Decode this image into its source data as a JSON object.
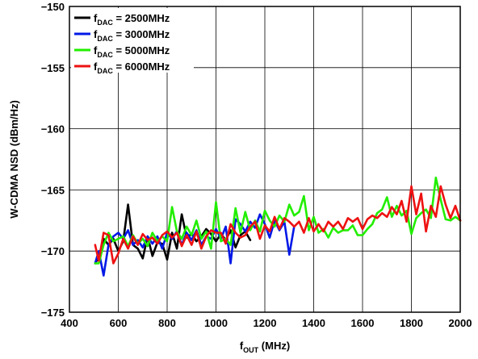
{
  "chart_data": {
    "type": "line",
    "xlabel": {
      "main": "f",
      "sub": "OUT",
      "rest": " (MHz)"
    },
    "ylabel": "W-CDMA NSD (dBm/Hz)",
    "xlim": [
      400,
      2000
    ],
    "ylim": [
      -175,
      -150
    ],
    "x_ticks": [
      400,
      600,
      800,
      1000,
      1200,
      1400,
      1600,
      1800,
      2000
    ],
    "y_ticks": [
      -175,
      -170,
      -165,
      -160,
      -155,
      -150
    ],
    "x_tick_labels": [
      "400",
      "600",
      "800",
      "1000",
      "1200",
      "1400",
      "1600",
      "1800",
      "2000"
    ],
    "y_tick_labels": [
      "−175",
      "−170",
      "−165",
      "−160",
      "−155",
      "−150"
    ],
    "grid": true,
    "legend_position": "top-left",
    "series": [
      {
        "name": {
          "main": "f",
          "sub": "DAC",
          "rest": " = 2500MHz"
        },
        "color": "#000000",
        "x": [
          505,
          520,
          540,
          560,
          580,
          600,
          620,
          640,
          660,
          680,
          700,
          720,
          740,
          760,
          780,
          800,
          820,
          840,
          860,
          880,
          900,
          920,
          940,
          960,
          980,
          1000,
          1020,
          1040,
          1060,
          1080,
          1100,
          1120,
          1140
        ],
        "y": [
          -171,
          -170.5,
          -169,
          -169.5,
          -169,
          -170,
          -169.2,
          -166.2,
          -169.5,
          -169.8,
          -170.6,
          -168.8,
          -170.4,
          -169.3,
          -169.4,
          -170.7,
          -168.5,
          -169.8,
          -167,
          -168.9,
          -168.6,
          -169.2,
          -168.8,
          -168.2,
          -168.6,
          -169.2,
          -168.6,
          -169.1,
          -168.3,
          -169.7,
          -168.7,
          -168.4,
          -169.1
        ]
      },
      {
        "name": {
          "main": "f",
          "sub": "DAC",
          "rest": " = 3000MHz"
        },
        "color": "#0018e6",
        "x": [
          505,
          520,
          540,
          560,
          580,
          600,
          620,
          640,
          660,
          680,
          700,
          720,
          740,
          760,
          780,
          800,
          820,
          840,
          860,
          880,
          900,
          920,
          940,
          960,
          980,
          1000,
          1020,
          1040,
          1060,
          1080,
          1100,
          1120,
          1140,
          1160,
          1180,
          1200,
          1220,
          1240,
          1260,
          1280,
          1300,
          1320
        ],
        "y": [
          -171,
          -170,
          -172,
          -169.5,
          -168.8,
          -168.5,
          -169,
          -168.3,
          -169.5,
          -169.1,
          -169.7,
          -168.8,
          -169.4,
          -168.8,
          -169.8,
          -168.5,
          -169,
          -168.4,
          -169.5,
          -168.5,
          -169.1,
          -168.3,
          -169.5,
          -168.8,
          -169,
          -168.2,
          -169,
          -168,
          -171,
          -167.4,
          -167.8,
          -168.4,
          -167.6,
          -168.1,
          -167,
          -167.8,
          -168.9,
          -167.5,
          -168.3,
          -167.6,
          -170.3,
          -168
        ]
      },
      {
        "name": {
          "main": "f",
          "sub": "DAC",
          "rest": " = 5000MHz"
        },
        "color": "#22ee00",
        "x": [
          505,
          520,
          540,
          560,
          580,
          600,
          620,
          640,
          660,
          680,
          700,
          720,
          740,
          760,
          780,
          800,
          820,
          840,
          860,
          880,
          900,
          920,
          940,
          960,
          980,
          1000,
          1020,
          1040,
          1060,
          1080,
          1100,
          1120,
          1140,
          1160,
          1180,
          1200,
          1220,
          1240,
          1260,
          1280,
          1300,
          1320,
          1340,
          1360,
          1380,
          1400,
          1420,
          1440,
          1460,
          1480,
          1500,
          1520,
          1540,
          1560,
          1580,
          1600,
          1620,
          1640,
          1660,
          1680,
          1700,
          1720,
          1740,
          1760,
          1780,
          1800,
          1820,
          1840,
          1860,
          1880,
          1900,
          1920,
          1940,
          1960,
          1980,
          2000
        ],
        "y": [
          -171,
          -171,
          -169.5,
          -168.5,
          -169.2,
          -169,
          -168.8,
          -169.6,
          -168.7,
          -169.4,
          -169,
          -169.6,
          -168.5,
          -169.2,
          -168.8,
          -169.2,
          -166.4,
          -168.4,
          -169,
          -168,
          -168.7,
          -167.5,
          -169,
          -168.4,
          -169.8,
          -166,
          -169.2,
          -169,
          -169.5,
          -166.5,
          -168.5,
          -166.8,
          -168.3,
          -167.5,
          -168.4,
          -166.7,
          -167.5,
          -168,
          -167.1,
          -167.6,
          -166.2,
          -167.1,
          -166.8,
          -165.5,
          -168.3,
          -167.2,
          -168.5,
          -168.2,
          -168.9,
          -168.1,
          -168.5,
          -168.3,
          -168.3,
          -167.9,
          -168.7,
          -168.7,
          -168.2,
          -167.8,
          -166.9,
          -166.6,
          -165.6,
          -167.2,
          -166.3,
          -167.1,
          -166.7,
          -168.6,
          -167.3,
          -166.9,
          -166.6,
          -167.3,
          -164,
          -165.8,
          -167.4,
          -167.5,
          -167.2,
          -167.5
        ]
      },
      {
        "name": {
          "main": "f",
          "sub": "DAC",
          "rest": " = 6000MHz"
        },
        "color": "#ee1111",
        "x": [
          505,
          520,
          540,
          560,
          580,
          600,
          620,
          640,
          660,
          680,
          700,
          720,
          740,
          760,
          780,
          800,
          820,
          840,
          860,
          880,
          900,
          920,
          940,
          960,
          980,
          1000,
          1020,
          1040,
          1060,
          1080,
          1100,
          1120,
          1140,
          1160,
          1180,
          1200,
          1220,
          1240,
          1260,
          1280,
          1300,
          1320,
          1340,
          1360,
          1380,
          1400,
          1420,
          1440,
          1460,
          1480,
          1500,
          1520,
          1540,
          1560,
          1580,
          1600,
          1620,
          1640,
          1660,
          1680,
          1700,
          1720,
          1740,
          1760,
          1780,
          1800,
          1820,
          1840,
          1860,
          1880,
          1900,
          1920,
          1940,
          1960,
          1980,
          2000
        ],
        "y": [
          -169.5,
          -170.8,
          -168.5,
          -168.7,
          -171,
          -170.2,
          -169,
          -169.8,
          -168.8,
          -169.5,
          -168.6,
          -169.1,
          -168.9,
          -169.4,
          -168.7,
          -168.4,
          -168.9,
          -168.5,
          -169.6,
          -168.7,
          -169.5,
          -168.4,
          -169.8,
          -168.8,
          -168.3,
          -168.5,
          -168.5,
          -169.4,
          -167.8,
          -168.5,
          -168.9,
          -168.7,
          -168,
          -167.6,
          -169,
          -167.9,
          -168.4,
          -167.2,
          -168.2,
          -167.3,
          -167.6,
          -168,
          -167.6,
          -168.5,
          -167.3,
          -168.4,
          -167.8,
          -168.4,
          -167.6,
          -168,
          -167.6,
          -168.2,
          -167.3,
          -167.6,
          -167.3,
          -168.2,
          -167.4,
          -167.1,
          -167.3,
          -166.9,
          -167.2,
          -166.4,
          -167,
          -165.9,
          -167.6,
          -164.7,
          -167,
          -165.3,
          -168.4,
          -166.3,
          -167.2,
          -164.7,
          -166.2,
          -167.3,
          -166.3,
          -167.5
        ]
      }
    ]
  }
}
